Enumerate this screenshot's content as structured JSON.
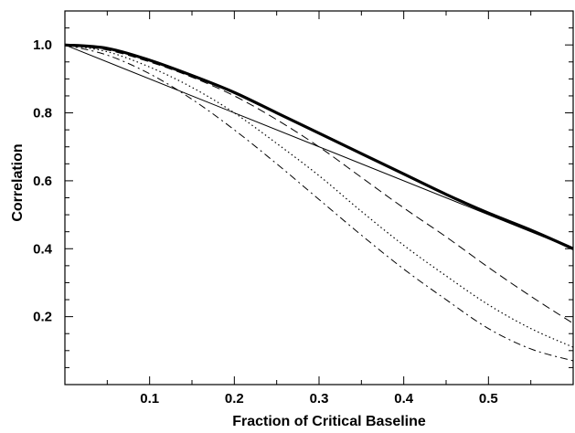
{
  "chart_data": {
    "type": "line",
    "title": "",
    "xlabel": "Fraction of Critical Baseline",
    "ylabel": "Correlation",
    "xlim": [
      0.0,
      0.6
    ],
    "ylim": [
      0.0,
      1.1
    ],
    "xticks": [
      0.1,
      0.2,
      0.3,
      0.4,
      0.5
    ],
    "xtick_labels": [
      "0.1",
      "0.2",
      "0.3",
      "0.4",
      "0.5"
    ],
    "yticks": [
      0.2,
      0.4,
      0.6,
      0.8,
      1.0
    ],
    "ytick_labels": [
      "0.2",
      "0.4",
      "0.6",
      "0.8",
      "1.0"
    ],
    "grid": false,
    "legend": "none",
    "series": [
      {
        "style": "thick-solid",
        "x": [
          0.0,
          0.05,
          0.1,
          0.15,
          0.2,
          0.25,
          0.3,
          0.35,
          0.4,
          0.45,
          0.5,
          0.55,
          0.6
        ],
        "y": [
          1.0,
          0.99,
          0.955,
          0.91,
          0.86,
          0.8,
          0.74,
          0.68,
          0.62,
          0.56,
          0.505,
          0.455,
          0.4
        ]
      },
      {
        "style": "thin-solid",
        "x": [
          0.0,
          0.6
        ],
        "y": [
          1.0,
          0.4
        ]
      },
      {
        "style": "dashed",
        "x": [
          0.0,
          0.05,
          0.1,
          0.15,
          0.2,
          0.25,
          0.3,
          0.35,
          0.4,
          0.45,
          0.5,
          0.55,
          0.6
        ],
        "y": [
          1.0,
          0.985,
          0.95,
          0.905,
          0.85,
          0.78,
          0.7,
          0.61,
          0.52,
          0.435,
          0.345,
          0.26,
          0.18
        ]
      },
      {
        "style": "dotted",
        "x": [
          0.0,
          0.05,
          0.1,
          0.15,
          0.2,
          0.25,
          0.3,
          0.35,
          0.4,
          0.45,
          0.5,
          0.55,
          0.6
        ],
        "y": [
          1.0,
          0.98,
          0.935,
          0.875,
          0.8,
          0.71,
          0.615,
          0.51,
          0.41,
          0.32,
          0.235,
          0.165,
          0.11
        ]
      },
      {
        "style": "dash-dot",
        "x": [
          0.0,
          0.05,
          0.1,
          0.15,
          0.2,
          0.25,
          0.3,
          0.35,
          0.4,
          0.45,
          0.5,
          0.55,
          0.6
        ],
        "y": [
          1.0,
          0.97,
          0.915,
          0.84,
          0.75,
          0.65,
          0.545,
          0.44,
          0.34,
          0.25,
          0.165,
          0.105,
          0.07
        ]
      }
    ]
  }
}
